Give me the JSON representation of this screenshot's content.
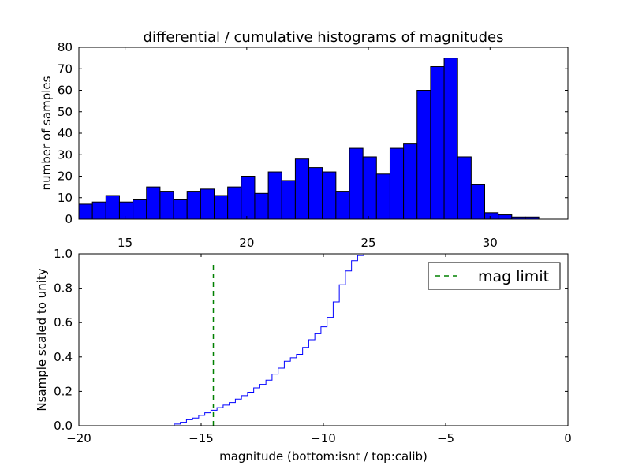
{
  "chart_data": [
    {
      "type": "bar",
      "title": "differential / cumulative histograms of magnitudes",
      "ylabel": "number of samples",
      "xlabel": "",
      "ylim": [
        0,
        80
      ],
      "xlim": [
        13.1,
        33.2
      ],
      "yticks": [
        0,
        10,
        20,
        30,
        40,
        50,
        60,
        70,
        80
      ],
      "xticks": [
        15,
        20,
        25,
        30
      ],
      "bin_start": 13.1,
      "bin_width": 0.556,
      "values": [
        7,
        8,
        11,
        8,
        9,
        15,
        13,
        9,
        13,
        14,
        11,
        15,
        20,
        12,
        22,
        18,
        28,
        24,
        22,
        13,
        33,
        29,
        21,
        33,
        35,
        60,
        71,
        75,
        29,
        16,
        3,
        2,
        1,
        1,
        0,
        0
      ],
      "color": "#0000ff"
    },
    {
      "type": "line",
      "xlabel": "magnitude (bottom:isnt / top:calib)",
      "ylabel": "Nsample scaled to unity",
      "xlim": [
        -20,
        0
      ],
      "ylim": [
        0,
        1.0
      ],
      "xticks": [
        -20,
        -15,
        -10,
        -5,
        0
      ],
      "yticks": [
        0.0,
        0.2,
        0.4,
        0.6,
        0.8,
        1.0
      ],
      "series": [
        {
          "name": "cumulative",
          "style": "step",
          "color": "#0000ff",
          "x": [
            -20,
            -16.1,
            -15.85,
            -15.6,
            -15.35,
            -15.1,
            -14.85,
            -14.6,
            -14.35,
            -14.1,
            -13.85,
            -13.6,
            -13.35,
            -13.1,
            -12.85,
            -12.6,
            -12.35,
            -12.1,
            -11.85,
            -11.6,
            -11.35,
            -11.1,
            -10.85,
            -10.6,
            -10.35,
            -10.1,
            -9.85,
            -9.6,
            -9.35,
            -9.1,
            -8.85,
            -8.6,
            -8.35,
            -8.1
          ],
          "y": [
            0.0,
            0.01,
            0.02,
            0.035,
            0.045,
            0.06,
            0.075,
            0.09,
            0.105,
            0.12,
            0.135,
            0.155,
            0.175,
            0.195,
            0.22,
            0.24,
            0.265,
            0.3,
            0.335,
            0.375,
            0.395,
            0.415,
            0.455,
            0.5,
            0.535,
            0.575,
            0.63,
            0.72,
            0.82,
            0.9,
            0.96,
            0.99,
            1.0,
            1.0
          ]
        },
        {
          "name": "mag limit",
          "style": "dashed",
          "color": "#008000",
          "x": [
            -14.5,
            -14.5
          ],
          "y": [
            0,
            0.95
          ]
        }
      ],
      "legend": {
        "entries": [
          "mag limit"
        ],
        "location": "top-right"
      }
    }
  ]
}
